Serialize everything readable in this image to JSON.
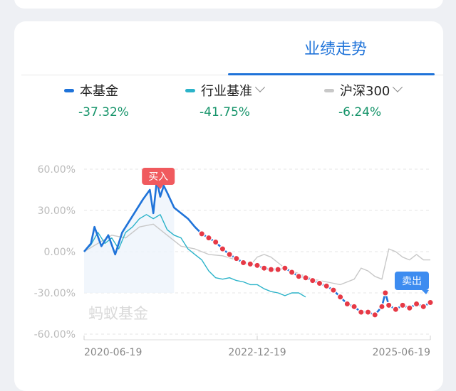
{
  "tab": {
    "label": "业绩走势"
  },
  "legend": [
    {
      "name": "本基金",
      "value": "-37.32%",
      "color": "#1f73d9",
      "dropdown": false
    },
    {
      "name": "行业基准",
      "value": "-41.75%",
      "color": "#2bb3c9",
      "dropdown": true
    },
    {
      "name": "沪深300",
      "value": "-6.24%",
      "color": "#c8c8c8",
      "dropdown": true
    }
  ],
  "chart_data": {
    "type": "line",
    "y_ticks": [
      "60.00%",
      "30.00%",
      "0.00%",
      "-30.00%",
      "-60.00%"
    ],
    "ylim": [
      -60,
      60
    ],
    "x_ticks": [
      "2020-06-19",
      "2022-12-19",
      "2025-06-19"
    ],
    "watermark": "蚂蚁基金",
    "buy_label": "买入",
    "sell_label": "卖出",
    "series": [
      {
        "name": "本基金",
        "color": "#1f73d9",
        "points": [
          [
            0,
            0
          ],
          [
            0.02,
            6
          ],
          [
            0.03,
            18
          ],
          [
            0.05,
            4
          ],
          [
            0.07,
            12
          ],
          [
            0.09,
            -2
          ],
          [
            0.11,
            14
          ],
          [
            0.13,
            22
          ],
          [
            0.15,
            30
          ],
          [
            0.17,
            38
          ],
          [
            0.19,
            45
          ],
          [
            0.2,
            28
          ],
          [
            0.21,
            52
          ],
          [
            0.22,
            40
          ],
          [
            0.23,
            48
          ],
          [
            0.24,
            43
          ],
          [
            0.26,
            32
          ],
          [
            0.28,
            28
          ],
          [
            0.3,
            24
          ],
          [
            0.32,
            18
          ],
          [
            0.34,
            13
          ],
          [
            0.36,
            10
          ],
          [
            0.38,
            7
          ],
          [
            0.4,
            2
          ],
          [
            0.42,
            -2
          ],
          [
            0.44,
            -5
          ],
          [
            0.46,
            -8
          ],
          [
            0.48,
            -9
          ],
          [
            0.5,
            -10
          ],
          [
            0.52,
            -12
          ],
          [
            0.54,
            -13
          ],
          [
            0.56,
            -13
          ],
          [
            0.58,
            -12
          ],
          [
            0.6,
            -15
          ],
          [
            0.62,
            -18
          ],
          [
            0.64,
            -19
          ],
          [
            0.66,
            -21
          ],
          [
            0.68,
            -23
          ],
          [
            0.7,
            -25
          ],
          [
            0.72,
            -28
          ],
          [
            0.74,
            -33
          ],
          [
            0.76,
            -38
          ],
          [
            0.78,
            -40
          ],
          [
            0.8,
            -44
          ],
          [
            0.82,
            -44
          ],
          [
            0.84,
            -46
          ],
          [
            0.86,
            -40
          ],
          [
            0.87,
            -30
          ],
          [
            0.88,
            -39
          ],
          [
            0.9,
            -42
          ],
          [
            0.92,
            -39
          ],
          [
            0.94,
            -41
          ],
          [
            0.96,
            -38
          ],
          [
            0.98,
            -40
          ],
          [
            1,
            -37
          ]
        ]
      },
      {
        "name": "行业基准",
        "color": "#2bb3c9",
        "points": [
          [
            0,
            0
          ],
          [
            0.02,
            5
          ],
          [
            0.04,
            14
          ],
          [
            0.06,
            6
          ],
          [
            0.08,
            10
          ],
          [
            0.1,
            2
          ],
          [
            0.12,
            14
          ],
          [
            0.14,
            18
          ],
          [
            0.16,
            24
          ],
          [
            0.18,
            27
          ],
          [
            0.2,
            24
          ],
          [
            0.22,
            27
          ],
          [
            0.24,
            16
          ],
          [
            0.26,
            12
          ],
          [
            0.28,
            10
          ],
          [
            0.3,
            2
          ],
          [
            0.32,
            -2
          ],
          [
            0.34,
            -6
          ],
          [
            0.36,
            -14
          ],
          [
            0.38,
            -19
          ],
          [
            0.4,
            -20
          ],
          [
            0.42,
            -19
          ],
          [
            0.44,
            -21
          ],
          [
            0.46,
            -22
          ],
          [
            0.48,
            -24
          ],
          [
            0.5,
            -24
          ],
          [
            0.52,
            -27
          ],
          [
            0.54,
            -29
          ],
          [
            0.56,
            -30
          ],
          [
            0.58,
            -32
          ],
          [
            0.6,
            -30
          ],
          [
            0.62,
            -30
          ],
          [
            0.64,
            -33
          ]
        ]
      },
      {
        "name": "沪深300",
        "color": "#c8c8c8",
        "points": [
          [
            0,
            0
          ],
          [
            0.04,
            6
          ],
          [
            0.08,
            12
          ],
          [
            0.12,
            10
          ],
          [
            0.16,
            18
          ],
          [
            0.2,
            20
          ],
          [
            0.24,
            12
          ],
          [
            0.28,
            4
          ],
          [
            0.32,
            2
          ],
          [
            0.36,
            -2
          ],
          [
            0.4,
            -3
          ],
          [
            0.44,
            -6
          ],
          [
            0.48,
            -10
          ],
          [
            0.5,
            -4
          ],
          [
            0.52,
            -2
          ],
          [
            0.54,
            -4
          ],
          [
            0.56,
            -8
          ],
          [
            0.58,
            -12
          ],
          [
            0.62,
            -16
          ],
          [
            0.66,
            -20
          ],
          [
            0.7,
            -22
          ],
          [
            0.74,
            -24
          ],
          [
            0.78,
            -20
          ],
          [
            0.8,
            -12
          ],
          [
            0.82,
            -14
          ],
          [
            0.84,
            -18
          ],
          [
            0.86,
            -20
          ],
          [
            0.88,
            2
          ],
          [
            0.9,
            0
          ],
          [
            0.92,
            -4
          ],
          [
            0.94,
            -6
          ],
          [
            0.96,
            -2
          ],
          [
            0.98,
            -6
          ],
          [
            1,
            -6
          ]
        ]
      }
    ]
  }
}
